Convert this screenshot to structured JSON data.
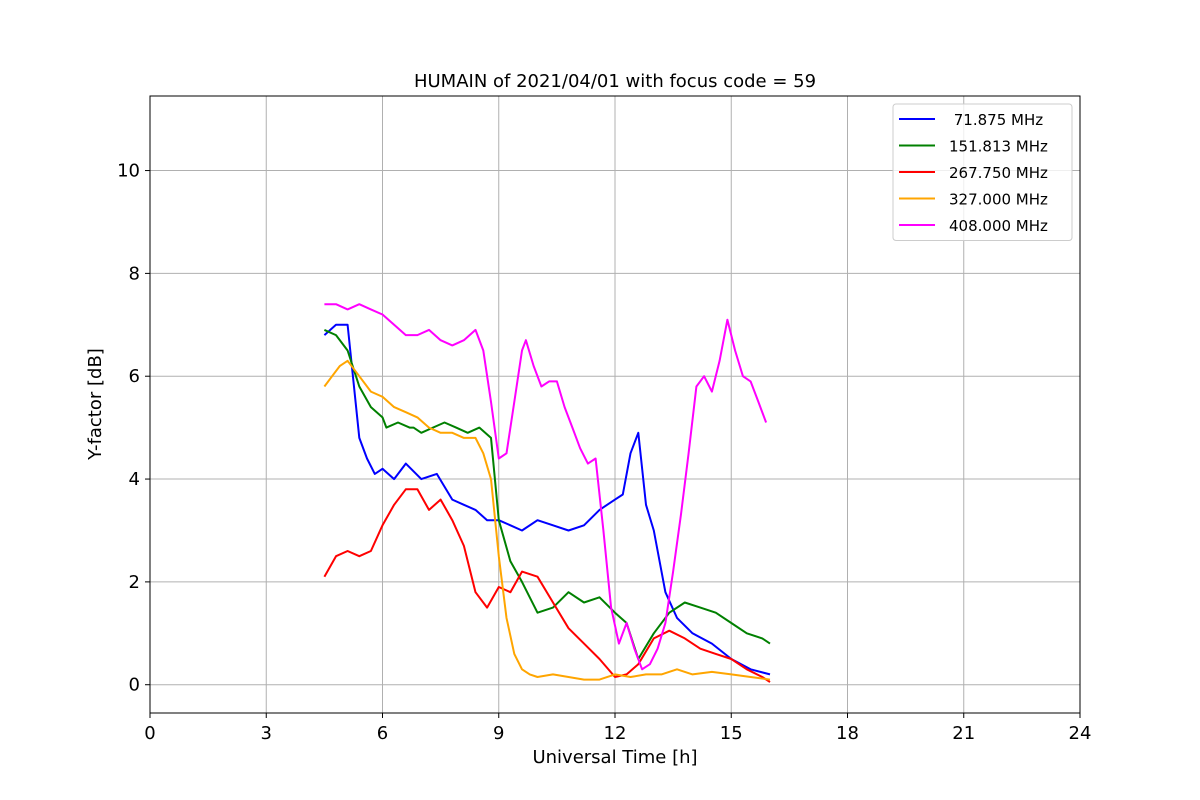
{
  "chart_data": {
    "type": "line",
    "title": "HUMAIN of 2021/04/01 with focus code = 59",
    "xlabel": "Universal Time [h]",
    "ylabel": "Y-factor [dB]",
    "xlim": [
      0,
      24
    ],
    "ylim": [
      -0.55,
      11.45
    ],
    "xticks": [
      0,
      3,
      6,
      9,
      12,
      15,
      18,
      21,
      24
    ],
    "yticks": [
      0,
      2,
      4,
      6,
      8,
      10
    ],
    "grid": true,
    "legend_position": "top-right",
    "series": [
      {
        "name": " 71.875 MHz",
        "color": "#0000ff",
        "x": [
          4.5,
          4.8,
          5.1,
          5.4,
          5.6,
          5.8,
          6.0,
          6.3,
          6.6,
          7.0,
          7.4,
          7.8,
          8.1,
          8.4,
          8.7,
          9.0,
          9.3,
          9.6,
          10.0,
          10.4,
          10.8,
          11.2,
          11.6,
          12.0,
          12.2,
          12.4,
          12.6,
          12.8,
          13.0,
          13.3,
          13.6,
          14.0,
          14.5,
          15.0,
          15.5,
          16.0
        ],
        "y": [
          6.8,
          7.0,
          7.0,
          4.8,
          4.4,
          4.1,
          4.2,
          4.0,
          4.3,
          4.0,
          4.1,
          3.6,
          3.5,
          3.4,
          3.2,
          3.2,
          3.1,
          3.0,
          3.2,
          3.1,
          3.0,
          3.1,
          3.4,
          3.6,
          3.7,
          4.5,
          4.9,
          3.5,
          3.0,
          1.8,
          1.3,
          1.0,
          0.8,
          0.5,
          0.3,
          0.2
        ]
      },
      {
        "name": "151.813 MHz",
        "color": "#008000",
        "x": [
          4.5,
          4.8,
          5.1,
          5.4,
          5.7,
          6.0,
          6.1,
          6.4,
          6.7,
          6.8,
          7.0,
          7.3,
          7.6,
          7.9,
          8.2,
          8.5,
          8.8,
          9.0,
          9.3,
          9.6,
          10.0,
          10.4,
          10.8,
          11.2,
          11.6,
          12.0,
          12.3,
          12.6,
          13.0,
          13.4,
          13.8,
          14.2,
          14.6,
          15.0,
          15.4,
          15.8,
          16.0
        ],
        "y": [
          6.9,
          6.8,
          6.5,
          5.8,
          5.4,
          5.2,
          5.0,
          5.1,
          5.0,
          5.0,
          4.9,
          5.0,
          5.1,
          5.0,
          4.9,
          5.0,
          4.8,
          3.2,
          2.4,
          2.0,
          1.4,
          1.5,
          1.8,
          1.6,
          1.7,
          1.4,
          1.2,
          0.5,
          1.0,
          1.4,
          1.6,
          1.5,
          1.4,
          1.2,
          1.0,
          0.9,
          0.8
        ]
      },
      {
        "name": "267.750 MHz",
        "color": "#ff0000",
        "x": [
          4.5,
          4.8,
          5.1,
          5.4,
          5.7,
          6.0,
          6.3,
          6.6,
          6.9,
          7.2,
          7.5,
          7.8,
          8.1,
          8.4,
          8.7,
          9.0,
          9.3,
          9.6,
          10.0,
          10.4,
          10.8,
          11.2,
          11.6,
          12.0,
          12.3,
          12.6,
          13.0,
          13.4,
          13.8,
          14.2,
          14.6,
          15.0,
          15.4,
          15.8,
          16.0
        ],
        "y": [
          2.1,
          2.5,
          2.6,
          2.5,
          2.6,
          3.1,
          3.5,
          3.8,
          3.8,
          3.4,
          3.6,
          3.2,
          2.7,
          1.8,
          1.5,
          1.9,
          1.8,
          2.2,
          2.1,
          1.6,
          1.1,
          0.8,
          0.5,
          0.15,
          0.2,
          0.4,
          0.9,
          1.05,
          0.9,
          0.7,
          0.6,
          0.5,
          0.3,
          0.15,
          0.05
        ]
      },
      {
        "name": "327.000 MHz",
        "color": "#ffa500",
        "x": [
          4.5,
          4.7,
          4.9,
          5.1,
          5.4,
          5.7,
          6.0,
          6.3,
          6.6,
          6.9,
          7.2,
          7.5,
          7.8,
          8.1,
          8.4,
          8.6,
          8.8,
          9.0,
          9.2,
          9.4,
          9.6,
          9.8,
          10.0,
          10.4,
          10.8,
          11.2,
          11.6,
          12.0,
          12.4,
          12.8,
          13.2,
          13.6,
          14.0,
          14.5,
          15.0,
          15.5,
          16.0
        ],
        "y": [
          5.8,
          6.0,
          6.2,
          6.3,
          6.0,
          5.7,
          5.6,
          5.4,
          5.3,
          5.2,
          5.0,
          4.9,
          4.9,
          4.8,
          4.8,
          4.5,
          4.0,
          2.5,
          1.3,
          0.6,
          0.3,
          0.2,
          0.15,
          0.2,
          0.15,
          0.1,
          0.1,
          0.2,
          0.15,
          0.2,
          0.2,
          0.3,
          0.2,
          0.25,
          0.2,
          0.15,
          0.1
        ]
      },
      {
        "name": "408.000 MHz",
        "color": "#ff00ff",
        "x": [
          4.5,
          4.8,
          5.1,
          5.4,
          5.7,
          6.0,
          6.3,
          6.6,
          6.9,
          7.2,
          7.5,
          7.8,
          8.1,
          8.4,
          8.6,
          8.8,
          9.0,
          9.2,
          9.4,
          9.6,
          9.7,
          9.9,
          10.1,
          10.3,
          10.5,
          10.7,
          10.9,
          11.1,
          11.3,
          11.5,
          11.7,
          11.9,
          12.1,
          12.3,
          12.5,
          12.7,
          12.9,
          13.1,
          13.3,
          13.5,
          13.7,
          13.9,
          14.1,
          14.3,
          14.5,
          14.7,
          14.9,
          15.1,
          15.3,
          15.5,
          15.7,
          15.9
        ],
        "y": [
          7.4,
          7.4,
          7.3,
          7.4,
          7.3,
          7.2,
          7.0,
          6.8,
          6.8,
          6.9,
          6.7,
          6.6,
          6.7,
          6.9,
          6.5,
          5.5,
          4.4,
          4.5,
          5.5,
          6.5,
          6.7,
          6.2,
          5.8,
          5.9,
          5.9,
          5.4,
          5.0,
          4.6,
          4.3,
          4.4,
          3.0,
          1.5,
          0.8,
          1.2,
          0.7,
          0.3,
          0.4,
          0.7,
          1.2,
          2.2,
          3.3,
          4.5,
          5.8,
          6.0,
          5.7,
          6.3,
          7.1,
          6.5,
          6.0,
          5.9,
          5.5,
          5.1
        ]
      }
    ]
  }
}
